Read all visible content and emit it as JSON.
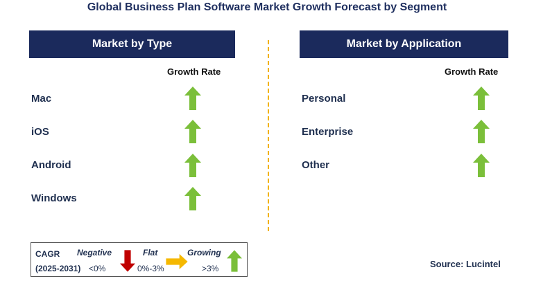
{
  "title": "Global Business Plan Software Market Growth Forecast by Segment",
  "left_panel": {
    "header": "Market by Type",
    "growth_header": "Growth Rate",
    "rows": [
      {
        "label": "Mac",
        "trend": "growing"
      },
      {
        "label": "iOS",
        "trend": "growing"
      },
      {
        "label": "Android",
        "trend": "growing"
      },
      {
        "label": "Windows",
        "trend": "growing"
      }
    ]
  },
  "right_panel": {
    "header": "Market by Application",
    "growth_header": "Growth Rate",
    "rows": [
      {
        "label": "Personal",
        "trend": "growing"
      },
      {
        "label": "Enterprise",
        "trend": "growing"
      },
      {
        "label": "Other",
        "trend": "growing"
      }
    ]
  },
  "legend": {
    "cagr_label": "CAGR",
    "period": "(2025-2031)",
    "negative": {
      "label": "Negative",
      "range": "<0%",
      "color": "#c00000"
    },
    "flat": {
      "label": "Flat",
      "range": "0%-3%",
      "color": "#f5b800"
    },
    "growing": {
      "label": "Growing",
      "range": ">3%",
      "color": "#7bbf3a"
    }
  },
  "source": "Source: Lucintel",
  "colors": {
    "header_bg": "#1b2a5c",
    "divider": "#f2b200",
    "up_arrow": "#7bbf3a"
  }
}
